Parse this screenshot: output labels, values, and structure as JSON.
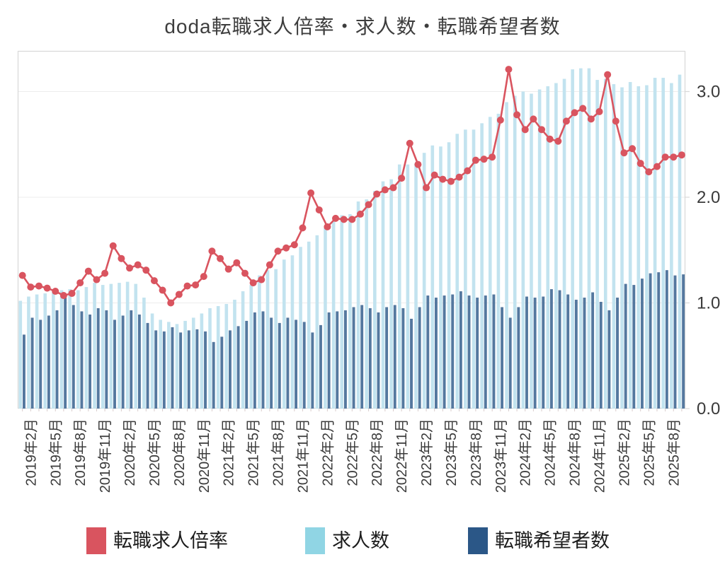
{
  "title": "doda転職求人倍率・求人数・転職希望者数",
  "colors": {
    "ratio_line": "#d9545f",
    "jobs_bar": "#c2e3ef",
    "jobs_legend": "#90d5e4",
    "seekers_bar": "#54789f",
    "seekers_legend": "#2b5787",
    "grid": "#ececec",
    "plot_border": "#d8d8d8",
    "axis_text": "#3a3a3a"
  },
  "legend": [
    {
      "label": "転職求人倍率",
      "series": "ratio"
    },
    {
      "label": "求人数",
      "series": "jobs"
    },
    {
      "label": "転職希望者数",
      "series": "seekers"
    }
  ],
  "y_axis": {
    "side": "right",
    "tick_labels": [
      "0.0",
      "1.0",
      "2.0",
      "3.0"
    ],
    "tick_values": [
      0,
      1,
      2,
      3
    ],
    "range": [
      0,
      3.4
    ]
  },
  "x_axis": {
    "tick_labels": [
      "2019年2月",
      "2019年5月",
      "2019年8月",
      "2019年11月",
      "2020年2月",
      "2020年5月",
      "2020年8月",
      "2020年11月",
      "2021年2月",
      "2021年5月",
      "2021年8月",
      "2021年11月",
      "2022年2月",
      "2022年5月",
      "2022年8月",
      "2022年11月",
      "2023年2月",
      "2023年5月",
      "2023年8月",
      "2023年11月",
      "2024年2月",
      "2024年5月",
      "2024年8月",
      "2024年11月",
      "2025年2月",
      "2025年5月",
      "2025年8月"
    ]
  },
  "chart_data": {
    "type": "combo",
    "grid": true,
    "legend_position": "bottom",
    "title": "doda転職求人倍率・求人数・転職希望者数",
    "months": [
      "2019年1月",
      "2019年2月",
      "2019年3月",
      "2019年4月",
      "2019年5月",
      "2019年6月",
      "2019年7月",
      "2019年8月",
      "2019年9月",
      "2019年10月",
      "2019年11月",
      "2019年12月",
      "2020年1月",
      "2020年2月",
      "2020年3月",
      "2020年4月",
      "2020年5月",
      "2020年6月",
      "2020年7月",
      "2020年8月",
      "2020年9月",
      "2020年10月",
      "2020年11月",
      "2020年12月",
      "2021年1月",
      "2021年2月",
      "2021年3月",
      "2021年4月",
      "2021年5月",
      "2021年6月",
      "2021年7月",
      "2021年8月",
      "2021年9月",
      "2021年10月",
      "2021年11月",
      "2021年12月",
      "2022年1月",
      "2022年2月",
      "2022年3月",
      "2022年4月",
      "2022年5月",
      "2022年6月",
      "2022年7月",
      "2022年8月",
      "2022年9月",
      "2022年10月",
      "2022年11月",
      "2022年12月",
      "2023年1月",
      "2023年2月",
      "2023年3月",
      "2023年4月",
      "2023年5月",
      "2023年6月",
      "2023年7月",
      "2023年8月",
      "2023年9月",
      "2023年10月",
      "2023年11月",
      "2023年12月",
      "2024年1月",
      "2024年2月",
      "2024年3月",
      "2024年4月",
      "2024年5月",
      "2024年6月",
      "2024年7月",
      "2024年8月",
      "2024年9月",
      "2024年10月",
      "2024年11月",
      "2024年12月",
      "2025年1月",
      "2025年2月",
      "2025年3月",
      "2025年4月",
      "2025年5月",
      "2025年6月",
      "2025年7月",
      "2025年8月",
      "2025年9月"
    ],
    "series": [
      {
        "name": "転職求人倍率",
        "kind": "line",
        "values": [
          1.26,
          1.15,
          1.16,
          1.14,
          1.11,
          1.07,
          1.09,
          1.19,
          1.3,
          1.22,
          1.28,
          1.54,
          1.42,
          1.33,
          1.36,
          1.31,
          1.21,
          1.12,
          1.0,
          1.08,
          1.16,
          1.17,
          1.25,
          1.49,
          1.42,
          1.32,
          1.38,
          1.28,
          1.19,
          1.22,
          1.36,
          1.49,
          1.52,
          1.55,
          1.71,
          2.04,
          1.88,
          1.72,
          1.8,
          1.79,
          1.79,
          1.84,
          1.93,
          2.03,
          2.07,
          2.09,
          2.18,
          2.51,
          2.31,
          2.09,
          2.21,
          2.17,
          2.15,
          2.19,
          2.25,
          2.35,
          2.36,
          2.38,
          2.73,
          3.21,
          2.78,
          2.64,
          2.74,
          2.64,
          2.55,
          2.53,
          2.72,
          2.8,
          2.84,
          2.74,
          2.81,
          3.16,
          2.72,
          2.42,
          2.46,
          2.32,
          2.24,
          2.29,
          2.38,
          2.38,
          2.4
        ]
      },
      {
        "name": "求人数",
        "kind": "bar",
        "values": [
          1.02,
          1.06,
          1.08,
          1.09,
          1.1,
          1.12,
          1.13,
          1.12,
          1.15,
          1.19,
          1.17,
          1.18,
          1.19,
          1.2,
          1.18,
          1.05,
          0.9,
          0.84,
          0.82,
          0.8,
          0.83,
          0.86,
          0.9,
          0.95,
          0.97,
          0.99,
          1.03,
          1.11,
          1.17,
          1.26,
          1.31,
          1.32,
          1.41,
          1.45,
          1.53,
          1.58,
          1.64,
          1.71,
          1.77,
          1.83,
          1.84,
          1.96,
          1.98,
          2.06,
          2.15,
          2.17,
          2.31,
          2.31,
          2.32,
          2.42,
          2.49,
          2.48,
          2.52,
          2.6,
          2.64,
          2.64,
          2.7,
          2.76,
          2.79,
          2.9,
          2.96,
          3.0,
          2.98,
          3.02,
          3.05,
          3.08,
          3.12,
          3.21,
          3.22,
          3.22,
          3.11,
          3.12,
          3.07,
          3.04,
          3.09,
          3.05,
          3.06,
          3.13,
          3.13,
          3.08,
          3.16
        ]
      },
      {
        "name": "転職希望者数",
        "kind": "bar",
        "values": [
          0.7,
          0.86,
          0.84,
          0.88,
          0.93,
          1.05,
          0.98,
          0.92,
          0.89,
          0.95,
          0.93,
          0.84,
          0.88,
          0.93,
          0.89,
          0.81,
          0.74,
          0.73,
          0.77,
          0.72,
          0.74,
          0.75,
          0.73,
          0.63,
          0.68,
          0.74,
          0.78,
          0.83,
          0.91,
          0.92,
          0.86,
          0.81,
          0.86,
          0.84,
          0.82,
          0.72,
          0.79,
          0.91,
          0.92,
          0.93,
          0.96,
          0.98,
          0.95,
          0.91,
          0.96,
          0.98,
          0.95,
          0.85,
          0.96,
          1.07,
          1.05,
          1.07,
          1.08,
          1.11,
          1.07,
          1.05,
          1.07,
          1.08,
          0.96,
          0.86,
          0.96,
          1.06,
          1.05,
          1.06,
          1.13,
          1.12,
          1.08,
          1.03,
          1.05,
          1.1,
          1.01,
          0.93,
          1.05,
          1.18,
          1.17,
          1.23,
          1.28,
          1.29,
          1.31,
          1.26,
          1.27
        ]
      }
    ]
  }
}
